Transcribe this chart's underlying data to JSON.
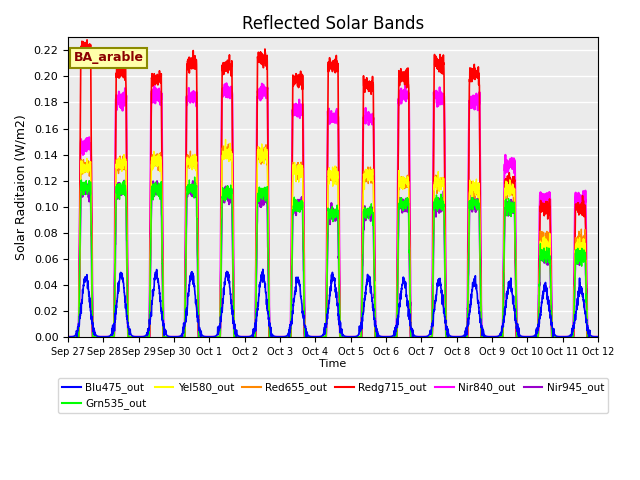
{
  "title": "Reflected Solar Bands",
  "xlabel": "Time",
  "ylabel": "Solar Raditaion (W/m2)",
  "annotation": "BA_arable",
  "ylim": [
    0,
    0.23
  ],
  "yticks": [
    0.0,
    0.02,
    0.04,
    0.06,
    0.08,
    0.1,
    0.12,
    0.14,
    0.16,
    0.18,
    0.2,
    0.22
  ],
  "xtick_labels": [
    "Sep 27",
    "Sep 28",
    "Sep 29",
    "Sep 30",
    "Oct 1",
    "Oct 2",
    "Oct 3",
    "Oct 4",
    "Oct 5",
    "Oct 6",
    "Oct 7",
    "Oct 8",
    "Oct 9",
    "Oct 10",
    "Oct 11",
    "Oct 12"
  ],
  "series": {
    "Blu475_out": {
      "color": "#0000FF",
      "lw": 1.2
    },
    "Grn535_out": {
      "color": "#00FF00",
      "lw": 1.0
    },
    "Yel580_out": {
      "color": "#FFFF00",
      "lw": 1.0
    },
    "Red655_out": {
      "color": "#FF8800",
      "lw": 1.0
    },
    "Redg715_out": {
      "color": "#FF0000",
      "lw": 1.2
    },
    "Nir840_out": {
      "color": "#FF00FF",
      "lw": 1.5
    },
    "Nir945_out": {
      "color": "#9900CC",
      "lw": 1.5
    }
  },
  "peaks_blue": [
    0.046,
    0.048,
    0.048,
    0.048,
    0.048,
    0.048,
    0.044,
    0.046,
    0.045,
    0.043,
    0.043,
    0.042,
    0.041,
    0.038,
    0.038
  ],
  "peaks_grn": [
    0.115,
    0.113,
    0.113,
    0.113,
    0.111,
    0.11,
    0.101,
    0.095,
    0.095,
    0.102,
    0.102,
    0.102,
    0.1,
    0.063,
    0.063
  ],
  "peaks_yel": [
    0.13,
    0.133,
    0.135,
    0.135,
    0.141,
    0.14,
    0.128,
    0.124,
    0.124,
    0.119,
    0.119,
    0.113,
    0.113,
    0.07,
    0.07
  ],
  "peaks_red": [
    0.13,
    0.133,
    0.135,
    0.135,
    0.141,
    0.14,
    0.128,
    0.124,
    0.124,
    0.119,
    0.119,
    0.113,
    0.113,
    0.075,
    0.075
  ],
  "peaks_redg": [
    0.222,
    0.203,
    0.198,
    0.21,
    0.208,
    0.213,
    0.197,
    0.208,
    0.193,
    0.2,
    0.21,
    0.202,
    0.119,
    0.099,
    0.099
  ],
  "peaks_nir840": [
    0.147,
    0.183,
    0.185,
    0.184,
    0.188,
    0.187,
    0.174,
    0.168,
    0.168,
    0.185,
    0.185,
    0.18,
    0.132,
    0.106,
    0.106
  ],
  "peaks_nir945": [
    0.113,
    0.113,
    0.114,
    0.113,
    0.109,
    0.107,
    0.101,
    0.094,
    0.094,
    0.102,
    0.101,
    0.102,
    0.1,
    0.063,
    0.063
  ],
  "background_color": "#EBEBEB",
  "n_days": 15,
  "points_per_day": 200
}
